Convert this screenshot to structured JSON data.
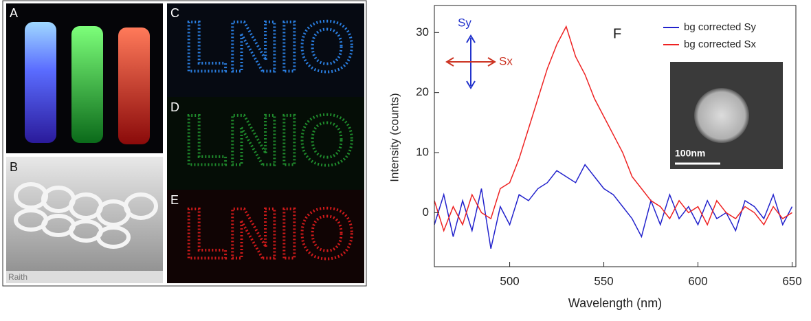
{
  "panels": {
    "a": "A",
    "b": "B",
    "c": "C",
    "d": "D",
    "e": "E",
    "brand": "Raith",
    "pattern": "LNIO"
  },
  "chart_data": {
    "type": "line",
    "panel_label": "F",
    "xlabel": "Wavelength (nm)",
    "ylabel": "Intensity (counts)",
    "annotations": {
      "sy": "Sy",
      "sx": "Sx",
      "scale": "100nm"
    },
    "x": [
      460,
      465,
      470,
      475,
      480,
      485,
      490,
      495,
      500,
      505,
      510,
      515,
      520,
      525,
      530,
      535,
      540,
      545,
      550,
      555,
      560,
      565,
      570,
      575,
      580,
      585,
      590,
      595,
      600,
      605,
      610,
      615,
      620,
      625,
      630,
      635,
      640,
      645,
      650
    ],
    "series": [
      {
        "name": "bg corrected Sy",
        "color": "#2222cc",
        "values": [
          -2,
          3,
          -4,
          2,
          -3,
          4,
          -6,
          1,
          -2,
          3,
          2,
          4,
          5,
          7,
          6,
          5,
          8,
          6,
          4,
          3,
          1,
          -1,
          -4,
          2,
          -2,
          3,
          -1,
          1,
          -2,
          2,
          -1,
          0,
          -3,
          2,
          1,
          -1,
          3,
          -2,
          1
        ]
      },
      {
        "name": "bg corrected Sx",
        "color": "#ee2222",
        "values": [
          2,
          -3,
          1,
          -2,
          3,
          0,
          -1,
          4,
          5,
          9,
          14,
          19,
          24,
          28,
          31,
          26,
          23,
          19,
          16,
          13,
          10,
          6,
          4,
          2,
          1,
          -1,
          2,
          0,
          1,
          -2,
          2,
          0,
          -1,
          1,
          0,
          -2,
          1,
          -1,
          0
        ]
      }
    ],
    "xlim": [
      460,
      652
    ],
    "ylim": [
      -9,
      34.5
    ],
    "xticks": [
      500,
      550,
      600,
      650
    ],
    "yticks": [
      0,
      10,
      20,
      30
    ],
    "legend": "upper-right"
  }
}
